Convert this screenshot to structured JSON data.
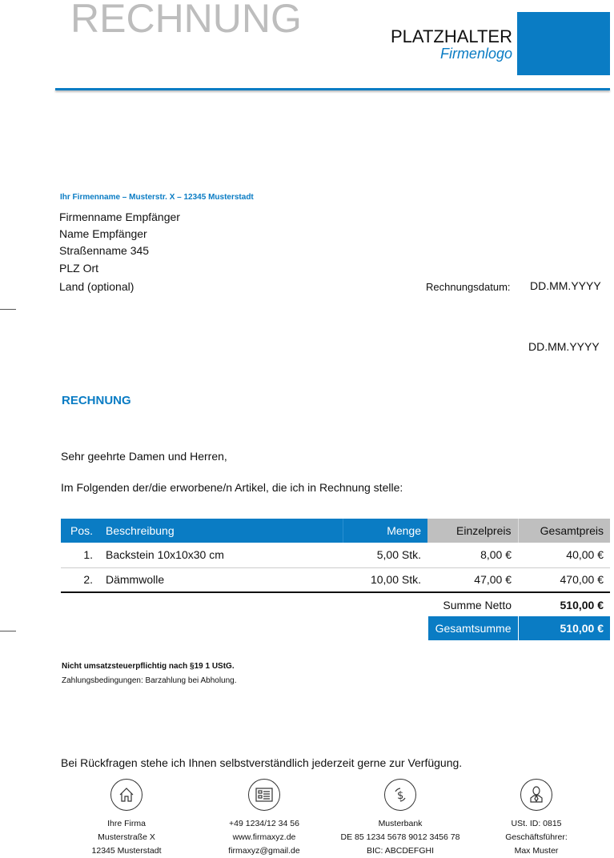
{
  "header": {
    "title": "RECHNUNG",
    "logo_main": "PLATZHALTER",
    "logo_sub": "Firmenlogo",
    "brand_color": "#0a7cc4"
  },
  "sender_line": "Ihr Firmenname – Musterstr. X – 12345 Musterstadt",
  "recipient": [
    "Firmenname Empfänger",
    "Name Empfänger",
    "Straßenname 345",
    "PLZ Ort",
    "Land (optional)"
  ],
  "date_label": "Rechnungsdatum:",
  "date_value": "DD.MM.YYYY",
  "date_value_2": "DD.MM.YYYY",
  "subject": "RECHNUNG",
  "salutation": "Sehr geehrte Damen und Herren,",
  "intro": "Im Folgenden der/die erworbene/n Artikel, die ich in Rechnung stelle:",
  "table": {
    "headers": [
      "Pos.",
      "Beschreibung",
      "Menge",
      "Einzelpreis",
      "Gesamtpreis"
    ],
    "rows": [
      [
        "1.",
        "Backstein 10x10x30 cm",
        "5,00 Stk.",
        "8,00 €",
        "40,00 €"
      ],
      [
        "2.",
        "Dämmwolle",
        "10,00 Stk.",
        "47,00 €",
        "470,00 €"
      ]
    ],
    "net_label": "Summe Netto",
    "net_value": "510,00 €",
    "total_label": "Gesamtsumme",
    "total_value": "510,00 €"
  },
  "note_tax": "Nicht umsatzsteuerpflichtig nach §19 1 UStG.",
  "note_payment": "Zahlungsbedingungen: Barzahlung bei Abholung.",
  "closing": "Bei Rückfragen stehe ich Ihnen selbstverständlich jederzeit gerne zur Verfügung.",
  "footer": [
    {
      "icon": "house-icon",
      "lines": [
        "Ihre Firma",
        "Musterstraße X",
        "12345 Musterstadt"
      ]
    },
    {
      "icon": "contact-card-icon",
      "lines": [
        "+49 1234/12 34 56",
        "www.firmaxyz.de",
        "firmaxyz@gmail.de"
      ]
    },
    {
      "icon": "dollar-exchange-icon",
      "lines": [
        "Musterbank",
        "DE 85 1234 5678 9012 3456 78",
        "BIC: ABCDEFGHI"
      ]
    },
    {
      "icon": "person-icon",
      "lines": [
        "USt. ID: 0815",
        "Geschäftsführer:",
        "Max Muster"
      ]
    }
  ]
}
